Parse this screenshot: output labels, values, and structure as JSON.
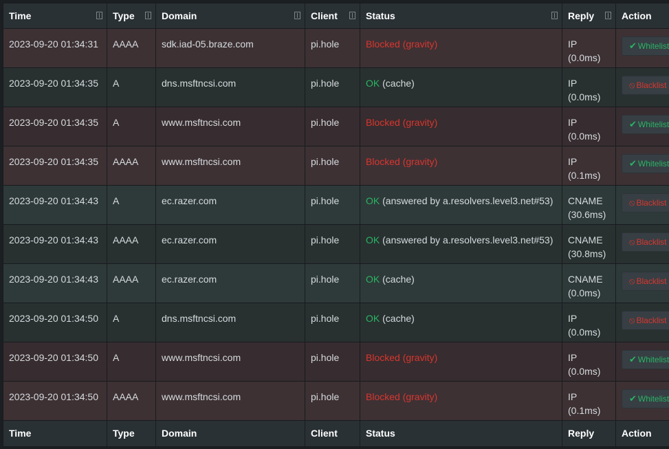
{
  "columns": {
    "time": "Time",
    "type": "Type",
    "domain": "Domain",
    "client": "Client",
    "status": "Status",
    "reply": "Reply",
    "action": "Action"
  },
  "status_colors": {
    "blocked": "#d9362f",
    "ok": "#2ab464"
  },
  "rows": [
    {
      "time": "2023-09-20 01:34:31",
      "type": "AAAA",
      "domain": "sdk.iad-05.braze.com",
      "client": "pi.hole",
      "status_main": "Blocked (gravity)",
      "status_detail": "",
      "reply_type": "IP",
      "reply_time": "(0.0ms)",
      "action": "Whitelist",
      "action_icon": "check-icon"
    },
    {
      "time": "2023-09-20 01:34:35",
      "type": "A",
      "domain": "dns.msftncsi.com",
      "client": "pi.hole",
      "status_main": "OK",
      "status_detail": "(cache)",
      "reply_type": "IP",
      "reply_time": "(0.0ms)",
      "action": "Blacklist",
      "action_icon": "ban-icon"
    },
    {
      "time": "2023-09-20 01:34:35",
      "type": "A",
      "domain": "www.msftncsi.com",
      "client": "pi.hole",
      "status_main": "Blocked (gravity)",
      "status_detail": "",
      "reply_type": "IP",
      "reply_time": "(0.0ms)",
      "action": "Whitelist",
      "action_icon": "check-icon"
    },
    {
      "time": "2023-09-20 01:34:35",
      "type": "AAAA",
      "domain": "www.msftncsi.com",
      "client": "pi.hole",
      "status_main": "Blocked (gravity)",
      "status_detail": "",
      "reply_type": "IP",
      "reply_time": "(0.1ms)",
      "action": "Whitelist",
      "action_icon": "check-icon"
    },
    {
      "time": "2023-09-20 01:34:43",
      "type": "A",
      "domain": "ec.razer.com",
      "client": "pi.hole",
      "status_main": "OK",
      "status_detail": "(answered by a.resolvers.level3.net#53)",
      "reply_type": "CNAME",
      "reply_time": "(30.6ms)",
      "action": "Blacklist",
      "action_icon": "ban-icon"
    },
    {
      "time": "2023-09-20 01:34:43",
      "type": "AAAA",
      "domain": "ec.razer.com",
      "client": "pi.hole",
      "status_main": "OK",
      "status_detail": "(answered by a.resolvers.level3.net#53)",
      "reply_type": "CNAME",
      "reply_time": "(30.8ms)",
      "action": "Blacklist",
      "action_icon": "ban-icon"
    },
    {
      "time": "2023-09-20 01:34:43",
      "type": "AAAA",
      "domain": "ec.razer.com",
      "client": "pi.hole",
      "status_main": "OK",
      "status_detail": "(cache)",
      "reply_type": "CNAME",
      "reply_time": "(0.0ms)",
      "action": "Blacklist",
      "action_icon": "ban-icon"
    },
    {
      "time": "2023-09-20 01:34:50",
      "type": "A",
      "domain": "dns.msftncsi.com",
      "client": "pi.hole",
      "status_main": "OK",
      "status_detail": "(cache)",
      "reply_type": "IP",
      "reply_time": "(0.0ms)",
      "action": "Blacklist",
      "action_icon": "ban-icon"
    },
    {
      "time": "2023-09-20 01:34:50",
      "type": "A",
      "domain": "www.msftncsi.com",
      "client": "pi.hole",
      "status_main": "Blocked (gravity)",
      "status_detail": "",
      "reply_type": "IP",
      "reply_time": "(0.0ms)",
      "action": "Whitelist",
      "action_icon": "check-icon"
    },
    {
      "time": "2023-09-20 01:34:50",
      "type": "AAAA",
      "domain": "www.msftncsi.com",
      "client": "pi.hole",
      "status_main": "Blocked (gravity)",
      "status_detail": "",
      "reply_type": "IP",
      "reply_time": "(0.1ms)",
      "action": "Whitelist",
      "action_icon": "check-icon"
    }
  ]
}
